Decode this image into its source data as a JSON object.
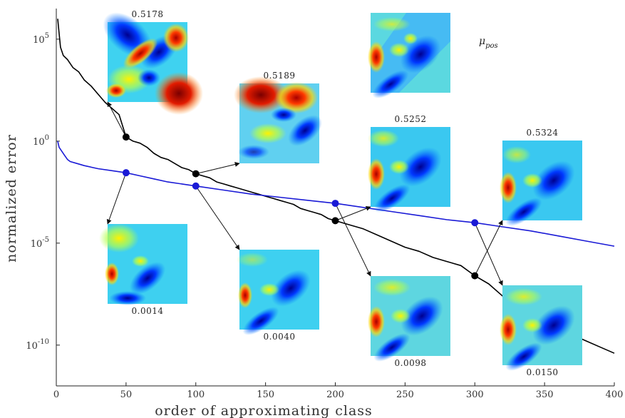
{
  "chart_data": {
    "type": "line",
    "xlabel": "order of approximating class",
    "ylabel": "normalized error",
    "xlim": [
      0,
      400
    ],
    "ylim_log10": [
      -12,
      6.5
    ],
    "yscale": "log",
    "x_ticks": [
      "0",
      "50",
      "100",
      "150",
      "200",
      "250",
      "300",
      "350",
      "400"
    ],
    "y_ticks": [
      {
        "base": "10",
        "exp": "5",
        "log10": 5
      },
      {
        "base": "10",
        "exp": "0",
        "log10": 0
      },
      {
        "base": "10",
        "exp": "-5",
        "log10": -5
      },
      {
        "base": "10",
        "exp": "-10",
        "log10": -10
      }
    ],
    "grid": false,
    "series": [
      {
        "color": "#000000",
        "x": [
          1,
          2,
          3,
          5,
          8,
          12,
          16,
          20,
          25,
          30,
          35,
          40,
          45,
          50,
          55,
          60,
          65,
          70,
          75,
          80,
          85,
          90,
          95,
          100,
          105,
          110,
          115,
          120,
          125,
          130,
          135,
          140,
          145,
          150,
          155,
          160,
          165,
          170,
          175,
          180,
          185,
          190,
          195,
          200,
          210,
          220,
          230,
          240,
          250,
          260,
          270,
          280,
          290,
          300,
          310,
          320,
          330,
          340,
          350,
          360,
          370,
          380,
          390,
          400
        ],
        "log10y": [
          6.0,
          5.3,
          4.6,
          4.2,
          4.0,
          3.6,
          3.4,
          3.0,
          2.7,
          2.3,
          1.9,
          1.6,
          1.3,
          0.2,
          0.0,
          -0.1,
          -0.3,
          -0.6,
          -0.8,
          -0.9,
          -1.1,
          -1.3,
          -1.4,
          -1.6,
          -1.7,
          -1.8,
          -2.0,
          -2.1,
          -2.2,
          -2.3,
          -2.4,
          -2.5,
          -2.6,
          -2.7,
          -2.8,
          -2.9,
          -3.0,
          -3.1,
          -3.3,
          -3.4,
          -3.5,
          -3.6,
          -3.8,
          -3.9,
          -4.1,
          -4.3,
          -4.6,
          -4.9,
          -5.2,
          -5.4,
          -5.7,
          -5.9,
          -6.1,
          -6.6,
          -7.0,
          -7.6,
          -8.0,
          -8.4,
          -8.8,
          -9.2,
          -9.5,
          -9.8,
          -10.1,
          -10.4
        ]
      },
      {
        "color": "#1a1ad6",
        "x": [
          1,
          2,
          4,
          6,
          8,
          10,
          15,
          20,
          30,
          40,
          50,
          60,
          70,
          80,
          90,
          100,
          120,
          140,
          160,
          180,
          200,
          220,
          240,
          260,
          280,
          300,
          320,
          340,
          360,
          380,
          400
        ],
        "log10y": [
          0.0,
          -0.3,
          -0.5,
          -0.7,
          -0.9,
          -1.0,
          -1.1,
          -1.2,
          -1.35,
          -1.45,
          -1.55,
          -1.7,
          -1.85,
          -2.0,
          -2.1,
          -2.2,
          -2.4,
          -2.6,
          -2.75,
          -2.9,
          -3.05,
          -3.25,
          -3.45,
          -3.65,
          -3.85,
          -4.0,
          -4.2,
          -4.4,
          -4.65,
          -4.9,
          -5.15
        ]
      }
    ],
    "markers": [
      {
        "x": 50,
        "series": 0,
        "log10y": 0.2
      },
      {
        "x": 100,
        "series": 0,
        "log10y": -1.6
      },
      {
        "x": 200,
        "series": 0,
        "log10y": -3.9
      },
      {
        "x": 300,
        "series": 0,
        "log10y": -6.6
      },
      {
        "x": 50,
        "series": 1,
        "log10y": -1.55
      },
      {
        "x": 100,
        "series": 1,
        "log10y": -2.2
      },
      {
        "x": 200,
        "series": 1,
        "log10y": -3.05
      },
      {
        "x": 300,
        "series": 1,
        "log10y": -4.0
      }
    ],
    "annotations": [
      {
        "label": "0.5178",
        "of": "black-50"
      },
      {
        "label": "0.5189",
        "of": "black-100"
      },
      {
        "label": "0.5252",
        "of": "black-200"
      },
      {
        "label": "0.5324",
        "of": "black-300"
      },
      {
        "label": "0.0014",
        "of": "blue-50"
      },
      {
        "label": "0.0040",
        "of": "blue-100"
      },
      {
        "label": "0.0098",
        "of": "blue-200"
      },
      {
        "label": "0.0150",
        "of": "blue-300"
      }
    ],
    "reference_label": "μ",
    "reference_label_subscript": "pos"
  }
}
